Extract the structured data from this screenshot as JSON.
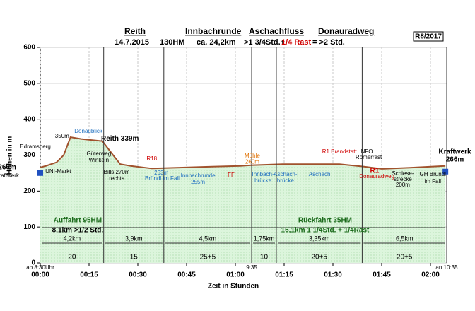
{
  "chart_data": {
    "type": "area",
    "title_parts": [
      "Reith",
      "Innbachrunde",
      "Aschachfluss",
      "Donauradweg"
    ],
    "subtitle_parts": [
      {
        "text": "14.7.2015",
        "color": "#000000"
      },
      {
        "text": "130HM",
        "color": "#000000"
      },
      {
        "text": "ca. 24,2km",
        "color": "#000000"
      },
      {
        "text": ">1 3/4Std.+",
        "color": "#000000"
      },
      {
        "text": "1/4 Rast",
        "color": "#d00000"
      },
      {
        "text": "= >2 Std.",
        "color": "#000000"
      }
    ],
    "badge": "R8/2017",
    "y_label": "Höhen in m",
    "x_label": "Zeit in Stunden",
    "x": [
      0,
      1.7,
      5,
      7.2,
      9.3,
      12.6,
      19.1,
      22.4,
      24.6,
      27.8,
      34.3,
      42,
      52.8,
      61.5,
      64.8,
      74.6,
      85.4,
      92,
      99.6,
      105,
      113.7,
      120.2,
      124.6
    ],
    "values": [
      266,
      270,
      280,
      300,
      350,
      345,
      339,
      300,
      275,
      270,
      263,
      265,
      268,
      270,
      272,
      275,
      275,
      275,
      268,
      262,
      265,
      268,
      270
    ],
    "color": "#a0522d",
    "fill": "#dcf5dc",
    "xlim": [
      0,
      125
    ],
    "ylim": [
      0,
      600
    ],
    "yticks": [
      0,
      100,
      200,
      300,
      400,
      500,
      600
    ],
    "xticks": [
      {
        "value": 0,
        "label": "00:00"
      },
      {
        "value": 15,
        "label": "00:15"
      },
      {
        "value": 30,
        "label": "00:30"
      },
      {
        "value": 45,
        "label": "00:45"
      },
      {
        "value": 60,
        "label": "01:00"
      },
      {
        "value": 75,
        "label": "01:15"
      },
      {
        "value": 90,
        "label": "01:30"
      },
      {
        "value": 105,
        "label": "01:45"
      },
      {
        "value": 120,
        "label": "02:00"
      }
    ],
    "grid": true,
    "segments": [
      {
        "start": 0,
        "end": 19.5,
        "distance": "4,2km",
        "time": "20"
      },
      {
        "start": 19.5,
        "end": 38,
        "distance": "3,9km",
        "time": "15"
      },
      {
        "start": 38,
        "end": 65,
        "distance": "4,5km",
        "time": "25+5"
      },
      {
        "start": 65,
        "end": 72.6,
        "distance": "1,75km",
        "time": "10"
      },
      {
        "start": 72.6,
        "end": 99,
        "distance": "3,35km",
        "time": "20+5"
      },
      {
        "start": 99,
        "end": 125,
        "distance": "6,5km",
        "time": "20+5"
      }
    ],
    "time_marks": [
      {
        "x": 0,
        "label": "ab 8:30Uhr"
      },
      {
        "x": 65,
        "label": "9:35"
      },
      {
        "x": 125,
        "label": "an 10:35"
      }
    ],
    "annotations": [
      {
        "text": "266m",
        "x": -10.2,
        "y": 266,
        "color": "#000000",
        "bold": true
      },
      {
        "text": "Kraftwerk",
        "x": -10.2,
        "y": 242,
        "color": "#000000"
      },
      {
        "text": "Edramsberg",
        "x": -1.5,
        "y": 323,
        "color": "#000000"
      },
      {
        "text": "350m",
        "x": 6.7,
        "y": 352,
        "color": "#000000"
      },
      {
        "text": "Donaublick",
        "x": 14.8,
        "y": 366,
        "color": "#1f6fbf"
      },
      {
        "text": "Reith 339m",
        "x": 24.5,
        "y": 346,
        "color": "#000000",
        "bold": true
      },
      {
        "text": "UNI-Markt",
        "x": 5.5,
        "y": 254,
        "color": "#000000"
      },
      {
        "text": "Güterweg",
        "x": 18,
        "y": 303,
        "color": "#000000"
      },
      {
        "text": "Winkeln",
        "x": 18,
        "y": 285,
        "color": "#000000"
      },
      {
        "text": "Bills 270m",
        "x": 23.5,
        "y": 252,
        "color": "#000000"
      },
      {
        "text": "rechts",
        "x": 23.5,
        "y": 234,
        "color": "#000000"
      },
      {
        "text": "R18",
        "x": 34.3,
        "y": 289,
        "color": "#d00000"
      },
      {
        "text": "263m",
        "x": 37.2,
        "y": 250,
        "color": "#1f6fbf"
      },
      {
        "text": "Bründl im Fall",
        "x": 37.5,
        "y": 234,
        "color": "#1f6fbf"
      },
      {
        "text": "Innbachrunde",
        "x": 48.5,
        "y": 242,
        "color": "#1f6fbf"
      },
      {
        "text": "255m",
        "x": 48.5,
        "y": 224,
        "color": "#1f6fbf"
      },
      {
        "text": "FF",
        "x": 58.7,
        "y": 244,
        "color": "#d00000"
      },
      {
        "text": "Mühle",
        "x": 65.2,
        "y": 297,
        "color": "#e07000"
      },
      {
        "text": "260m",
        "x": 65.2,
        "y": 281,
        "color": "#e07000"
      },
      {
        "text": "Innbach-",
        "x": 68.5,
        "y": 246,
        "color": "#1f6fbf"
      },
      {
        "text": "brücke",
        "x": 68.5,
        "y": 228,
        "color": "#1f6fbf"
      },
      {
        "text": "Aschach-",
        "x": 75.4,
        "y": 246,
        "color": "#1f6fbf"
      },
      {
        "text": "brücke",
        "x": 75.4,
        "y": 228,
        "color": "#1f6fbf"
      },
      {
        "text": "Aschach",
        "x": 85.9,
        "y": 246,
        "color": "#1f6fbf"
      },
      {
        "text": "R1 Brandstatt",
        "x": 92,
        "y": 309,
        "color": "#d00000"
      },
      {
        "text": "INFO",
        "x": 100.2,
        "y": 309,
        "color": "#000000"
      },
      {
        "text": "Römerrast",
        "x": 101,
        "y": 293,
        "color": "#000000"
      },
      {
        "text": "R1",
        "x": 102.8,
        "y": 256,
        "color": "#d00000",
        "bold": true
      },
      {
        "text": "Donauradweg",
        "x": 103.5,
        "y": 240,
        "color": "#d00000"
      },
      {
        "text": "Schiese-",
        "x": 111.5,
        "y": 248,
        "color": "#000000"
      },
      {
        "text": "strecke",
        "x": 111.5,
        "y": 232,
        "color": "#000000"
      },
      {
        "text": "200m",
        "x": 111.5,
        "y": 217,
        "color": "#000000"
      },
      {
        "text": "GH Bründl",
        "x": 120.7,
        "y": 246,
        "color": "#000000"
      },
      {
        "text": "im Fall",
        "x": 120.7,
        "y": 226,
        "color": "#000000"
      },
      {
        "text": "Kraftwerk",
        "x": 127.5,
        "y": 309,
        "color": "#000000",
        "bold": true
      },
      {
        "text": "266m",
        "x": 127.5,
        "y": 287,
        "color": "#000000",
        "bold": true
      },
      {
        "text": "Auffahrt 95HM",
        "x": 11.5,
        "y": 118,
        "color": "#1a6a1a",
        "bold": true
      },
      {
        "text": "8,1km  >1/2 Std.",
        "x": 11.5,
        "y": 91,
        "color": "#000000",
        "bold": true
      },
      {
        "text": "Rückfahrt 35HM",
        "x": 87.6,
        "y": 118,
        "color": "#1a6a1a",
        "bold": true
      },
      {
        "text": "16,1km  1 1/4Std. + 1/4Rast",
        "x": 87.6,
        "y": 91,
        "color": "#1a6a1a",
        "bold": true
      }
    ]
  }
}
